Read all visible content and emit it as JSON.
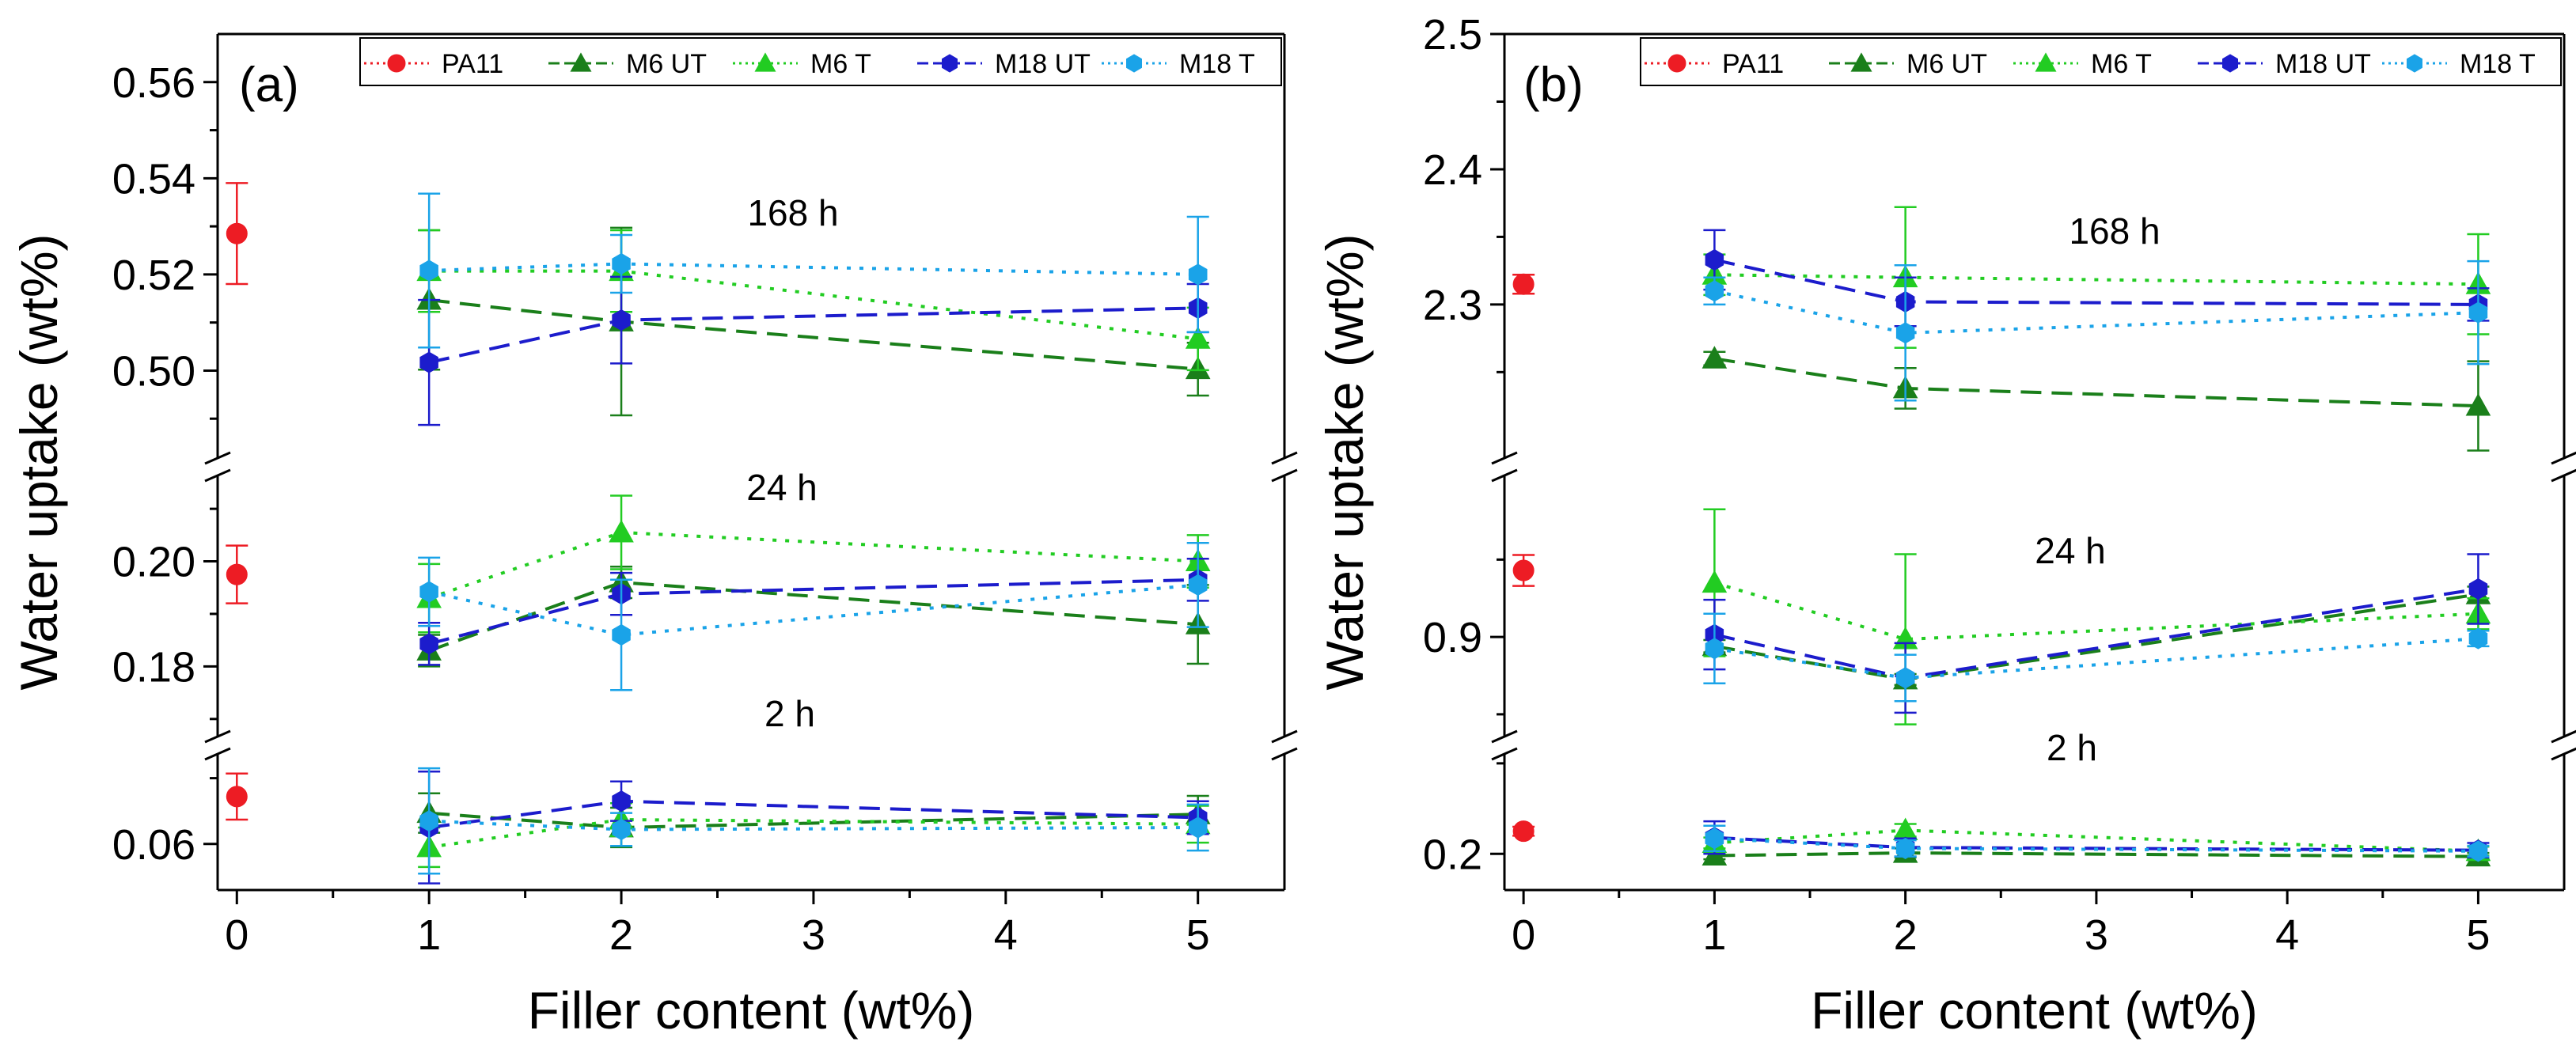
{
  "chart_data": [
    {
      "type": "line",
      "panel_label": "(a)",
      "xlabel": "Filler content (wt%)",
      "ylabel": "Water uptake (wt%)",
      "x_ticks": [
        "0",
        "1",
        "2",
        "3",
        "4",
        "5"
      ],
      "x_tick_values": [
        0,
        1,
        2,
        3,
        4,
        5
      ],
      "xlim": [
        -0.1,
        5.45
      ],
      "segments": [
        {
          "name": "168 h",
          "ylim": [
            0.48,
            0.57
          ],
          "y_ticks": [
            0.5,
            0.52,
            0.54,
            0.56
          ],
          "y_tick_labels": [
            "0.50",
            "0.52",
            "0.54",
            "0.56"
          ],
          "y_minor_ticks": [
            0.49,
            0.51,
            0.53,
            0.55
          ],
          "series": [
            {
              "name": "PA11",
              "x": [
                0
              ],
              "y": [
                0.5285
              ],
              "err": [
                0.0105
              ]
            },
            {
              "name": "M6 UT",
              "x": [
                1,
                2,
                5
              ],
              "y": [
                0.5147,
                0.5102,
                0.5003
              ],
              "err": [
                0.0145,
                0.0195,
                0.0055
              ]
            },
            {
              "name": "M6 T",
              "x": [
                1,
                2,
                5
              ],
              "y": [
                0.5207,
                0.5207,
                0.5066
              ],
              "err": [
                0.0085,
                0.0085,
                0.0065
              ]
            },
            {
              "name": "M18 UT",
              "x": [
                1,
                2,
                5
              ],
              "y": [
                0.5017,
                0.5105,
                0.513
              ],
              "err": [
                0.013,
                0.009,
                0.005
              ]
            },
            {
              "name": "M18 T",
              "x": [
                1,
                2,
                5
              ],
              "y": [
                0.5208,
                0.5222,
                0.52
              ],
              "err": [
                0.016,
                0.006,
                0.012
              ]
            }
          ]
        },
        {
          "name": "24 h",
          "ylim": [
            0.165,
            0.218
          ],
          "y_ticks": [
            0.18,
            0.2
          ],
          "y_tick_labels": [
            "0.18",
            "0.20"
          ],
          "y_minor_ticks": [
            0.17,
            0.19,
            0.21
          ],
          "series": [
            {
              "name": "PA11",
              "x": [
                0
              ],
              "y": [
                0.1975
              ],
              "err": [
                0.0055
              ]
            },
            {
              "name": "M6 UT",
              "x": [
                1,
                2,
                5
              ],
              "y": [
                0.183,
                0.196,
                0.188
              ],
              "err": [
                0.003,
                0.003,
                0.0075
              ]
            },
            {
              "name": "M6 T",
              "x": [
                1,
                2,
                5
              ],
              "y": [
                0.193,
                0.2055,
                0.2
              ],
              "err": [
                0.0065,
                0.007,
                0.005
              ]
            },
            {
              "name": "M18 UT",
              "x": [
                1,
                2,
                5
              ],
              "y": [
                0.1843,
                0.1938,
                0.1965
              ],
              "err": [
                0.004,
                0.004,
                0.004
              ]
            },
            {
              "name": "M18 T",
              "x": [
                1,
                2,
                5
              ],
              "y": [
                0.1942,
                0.186,
                0.1955
              ],
              "err": [
                0.0065,
                0.0105,
                0.008
              ]
            }
          ]
        },
        {
          "name": "2 h",
          "ylim": [
            0.053,
            0.075
          ],
          "y_ticks": [
            0.06
          ],
          "y_tick_labels": [
            "0.06"
          ],
          "y_minor_ticks": [
            0.07
          ],
          "series": [
            {
              "name": "PA11",
              "x": [
                0
              ],
              "y": [
                0.0672
              ],
              "err": [
                0.0035
              ]
            },
            {
              "name": "M6 UT",
              "x": [
                1,
                2,
                5
              ],
              "y": [
                0.0647,
                0.0625,
                0.0645
              ],
              "err": [
                0.003,
                0.003,
                0.0028
              ]
            },
            {
              "name": "M6 T",
              "x": [
                1,
                2,
                5
              ],
              "y": [
                0.0595,
                0.0637,
                0.063
              ],
              "err": [
                0.003,
                0.0025,
                0.0028
              ]
            },
            {
              "name": "M18 UT",
              "x": [
                1,
                2,
                5
              ],
              "y": [
                0.0625,
                0.0665,
                0.064
              ],
              "err": [
                0.0085,
                0.003,
                0.0025
              ]
            },
            {
              "name": "M18 T",
              "x": [
                1,
                2,
                5
              ],
              "y": [
                0.0635,
                0.0622,
                0.0625
              ],
              "err": [
                0.008,
                0.0025,
                0.0035
              ]
            }
          ]
        }
      ]
    },
    {
      "type": "line",
      "panel_label": "(b)",
      "xlabel": "Filler content (wt%)",
      "ylabel": "Water uptake (wt%)",
      "x_ticks": [
        "0",
        "1",
        "2",
        "3",
        "4",
        "5"
      ],
      "x_tick_values": [
        0,
        1,
        2,
        3,
        4,
        5
      ],
      "xlim": [
        -0.1,
        5.45
      ],
      "segments": [
        {
          "name": "168 h",
          "ylim": [
            2.18,
            2.5
          ],
          "y_ticks": [
            2.3,
            2.4,
            2.5
          ],
          "y_tick_labels": [
            "2.3",
            "2.4",
            "2.5"
          ],
          "y_minor_ticks": [
            2.25,
            2.35,
            2.45
          ],
          "series": [
            {
              "name": "PA11",
              "x": [
                0
              ],
              "y": [
                2.315
              ],
              "err": [
                0.007
              ]
            },
            {
              "name": "M6 UT",
              "x": [
                1,
                2,
                5
              ],
              "y": [
                2.26,
                2.238,
                2.225
              ],
              "err": [
                0.005,
                0.015,
                0.033
              ]
            },
            {
              "name": "M6 T",
              "x": [
                1,
                2,
                5
              ],
              "y": [
                2.322,
                2.32,
                2.315
              ],
              "err": [
                0.015,
                0.052,
                0.037
              ]
            },
            {
              "name": "M18 UT",
              "x": [
                1,
                2,
                5
              ],
              "y": [
                2.333,
                2.302,
                2.3
              ],
              "err": [
                0.022,
                0.018,
                0.012
              ]
            },
            {
              "name": "M18 T",
              "x": [
                1,
                2,
                5
              ],
              "y": [
                2.31,
                2.279,
                2.294
              ],
              "err": [
                0.01,
                0.05,
                0.038
              ]
            }
          ]
        },
        {
          "name": "24 h",
          "ylim": [
            0.76,
            1.12
          ],
          "y_ticks": [
            0.9
          ],
          "y_tick_labels": [
            "0.9"
          ],
          "y_minor_ticks": [
            0.8,
            1.0
          ],
          "series": [
            {
              "name": "PA11",
              "x": [
                0
              ],
              "y": [
                0.986
              ],
              "err": [
                0.02
              ]
            },
            {
              "name": "M6 UT",
              "x": [
                1,
                2,
                5
              ],
              "y": [
                0.888,
                0.845,
                0.955
              ],
              "err": [
                0.008,
                0.007,
                0.01
              ]
            },
            {
              "name": "M6 T",
              "x": [
                1,
                2,
                5
              ],
              "y": [
                0.97,
                0.897,
                0.93
              ],
              "err": [
                0.095,
                0.11,
                0.02
              ]
            },
            {
              "name": "M18 UT",
              "x": [
                1,
                2,
                5
              ],
              "y": [
                0.903,
                0.847,
                0.962
              ],
              "err": [
                0.045,
                0.045,
                0.045
              ]
            },
            {
              "name": "M18 T",
              "x": [
                1,
                2,
                5
              ],
              "y": [
                0.885,
                0.847,
                0.898
              ],
              "err": [
                0.045,
                0.03,
                0.01
              ]
            }
          ]
        },
        {
          "name": "2 h",
          "ylim": [
            0.16,
            0.32
          ],
          "y_ticks": [
            0.2
          ],
          "y_tick_labels": [
            "0.2"
          ],
          "y_minor_ticks": [
            0.3
          ],
          "series": [
            {
              "name": "PA11",
              "x": [
                0
              ],
              "y": [
                0.225
              ],
              "err": [
                0.005
              ]
            },
            {
              "name": "M6 UT",
              "x": [
                1,
                2,
                5
              ],
              "y": [
                0.198,
                0.201,
                0.197
              ],
              "err": [
                0.004,
                0.005,
                0.004
              ]
            },
            {
              "name": "M6 T",
              "x": [
                1,
                2,
                5
              ],
              "y": [
                0.212,
                0.226,
                0.203
              ],
              "err": [
                0.006,
                0.007,
                0.005
              ]
            },
            {
              "name": "M18 UT",
              "x": [
                1,
                2,
                5
              ],
              "y": [
                0.218,
                0.207,
                0.204
              ],
              "err": [
                0.018,
                0.01,
                0.008
              ]
            },
            {
              "name": "M18 T",
              "x": [
                1,
                2,
                5
              ],
              "y": [
                0.217,
                0.206,
                0.203
              ],
              "err": [
                0.014,
                0.009,
                0.006
              ]
            }
          ]
        }
      ]
    }
  ],
  "series_styles": {
    "PA11": {
      "color": "#ed1c24",
      "marker": "circle",
      "line": "dotted"
    },
    "M6 UT": {
      "color": "#1a7f1a",
      "marker": "triangle",
      "line": "dashed"
    },
    "M6 T": {
      "color": "#22cc22",
      "marker": "triangle",
      "line": "dotted"
    },
    "M18 UT": {
      "color": "#1c1ccc",
      "marker": "hexagon",
      "line": "dashed"
    },
    "M18 T": {
      "color": "#1aa3e8",
      "marker": "hexagon",
      "line": "dotted"
    }
  }
}
